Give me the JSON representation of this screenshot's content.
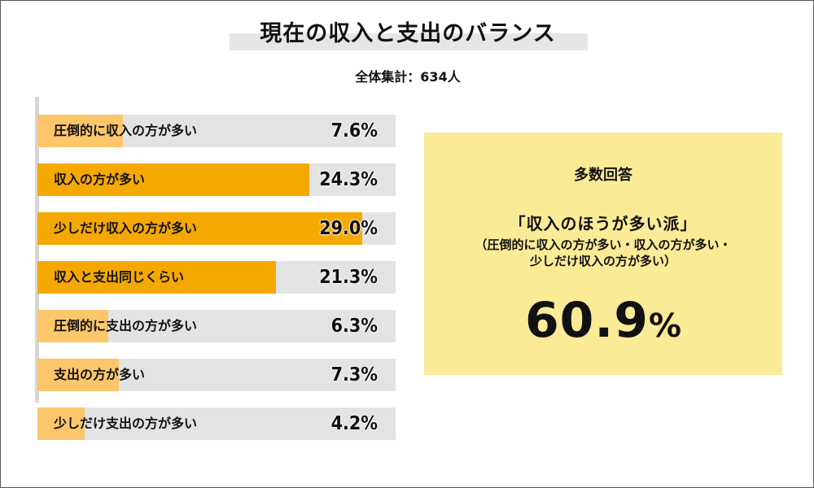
{
  "title": "現在の収入と支出のバランス",
  "subtitle": "全体集計：634人",
  "colors": {
    "strong": "#f5a800",
    "light": "#fdc66b",
    "track": "#e3e3e3",
    "summary_bg": "#fceb96"
  },
  "chart_data": {
    "type": "bar",
    "orientation": "horizontal",
    "title": "現在の収入と支出のバランス",
    "subtitle": "全体集計：634人",
    "unit": "%",
    "categories": [
      "圧倒的に収入の方が多い",
      "収入の方が多い",
      "少しだけ収入の方が多い",
      "収入と支出同じくらい",
      "圧倒的に支出の方が多い",
      "支出の方が多い",
      "少しだけ支出の方が多い"
    ],
    "values": [
      7.6,
      24.3,
      29.0,
      21.3,
      6.3,
      7.3,
      4.2
    ],
    "value_labels": [
      "7.6%",
      "24.3%",
      "29.0%",
      "21.3%",
      "6.3%",
      "7.3%",
      "4.2%"
    ],
    "highlighted": [
      false,
      true,
      true,
      true,
      false,
      false,
      false
    ],
    "xlim": [
      0,
      32
    ]
  },
  "summary": {
    "heading": "多数回答",
    "group": "「収入のほうが多い派」",
    "detail_lines": [
      "（圧倒的に収入の方が多い・収入の方が多い・",
      "少しだけ収入の方が多い）"
    ],
    "value_number": "60.9",
    "value_unit": "%"
  }
}
